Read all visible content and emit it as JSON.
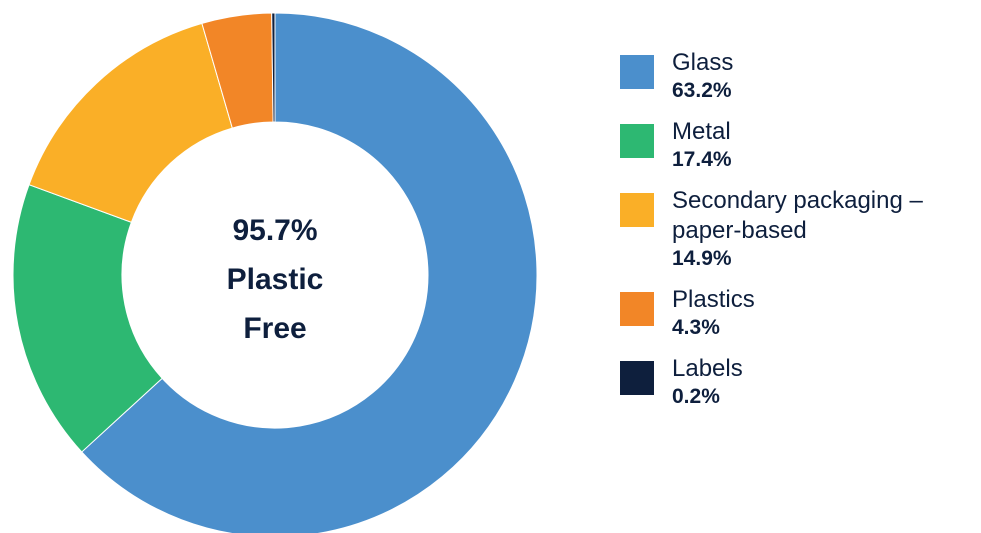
{
  "chart_data": {
    "type": "pie",
    "title": "",
    "center_label": [
      "95.7%",
      "Plastic",
      "Free"
    ],
    "legend_position": "right",
    "slices": [
      {
        "name": "Glass",
        "label_lines": [
          "Glass"
        ],
        "value": 63.2,
        "value_label": "63.2%",
        "color": "#4b8fcc"
      },
      {
        "name": "Metal",
        "label_lines": [
          "Metal"
        ],
        "value": 17.4,
        "value_label": "17.4%",
        "color": "#2db872"
      },
      {
        "name": "Secondary packaging – paper-based",
        "label_lines": [
          "Secondary packaging –",
          "paper-based"
        ],
        "value": 14.9,
        "value_label": "14.9%",
        "color": "#faaf27"
      },
      {
        "name": "Plastics",
        "label_lines": [
          "Plastics"
        ],
        "value": 4.3,
        "value_label": "4.3%",
        "color": "#f28627"
      },
      {
        "name": "Labels",
        "label_lines": [
          "Labels"
        ],
        "value": 0.2,
        "value_label": "0.2%",
        "color": "#0e1f3d"
      }
    ]
  }
}
